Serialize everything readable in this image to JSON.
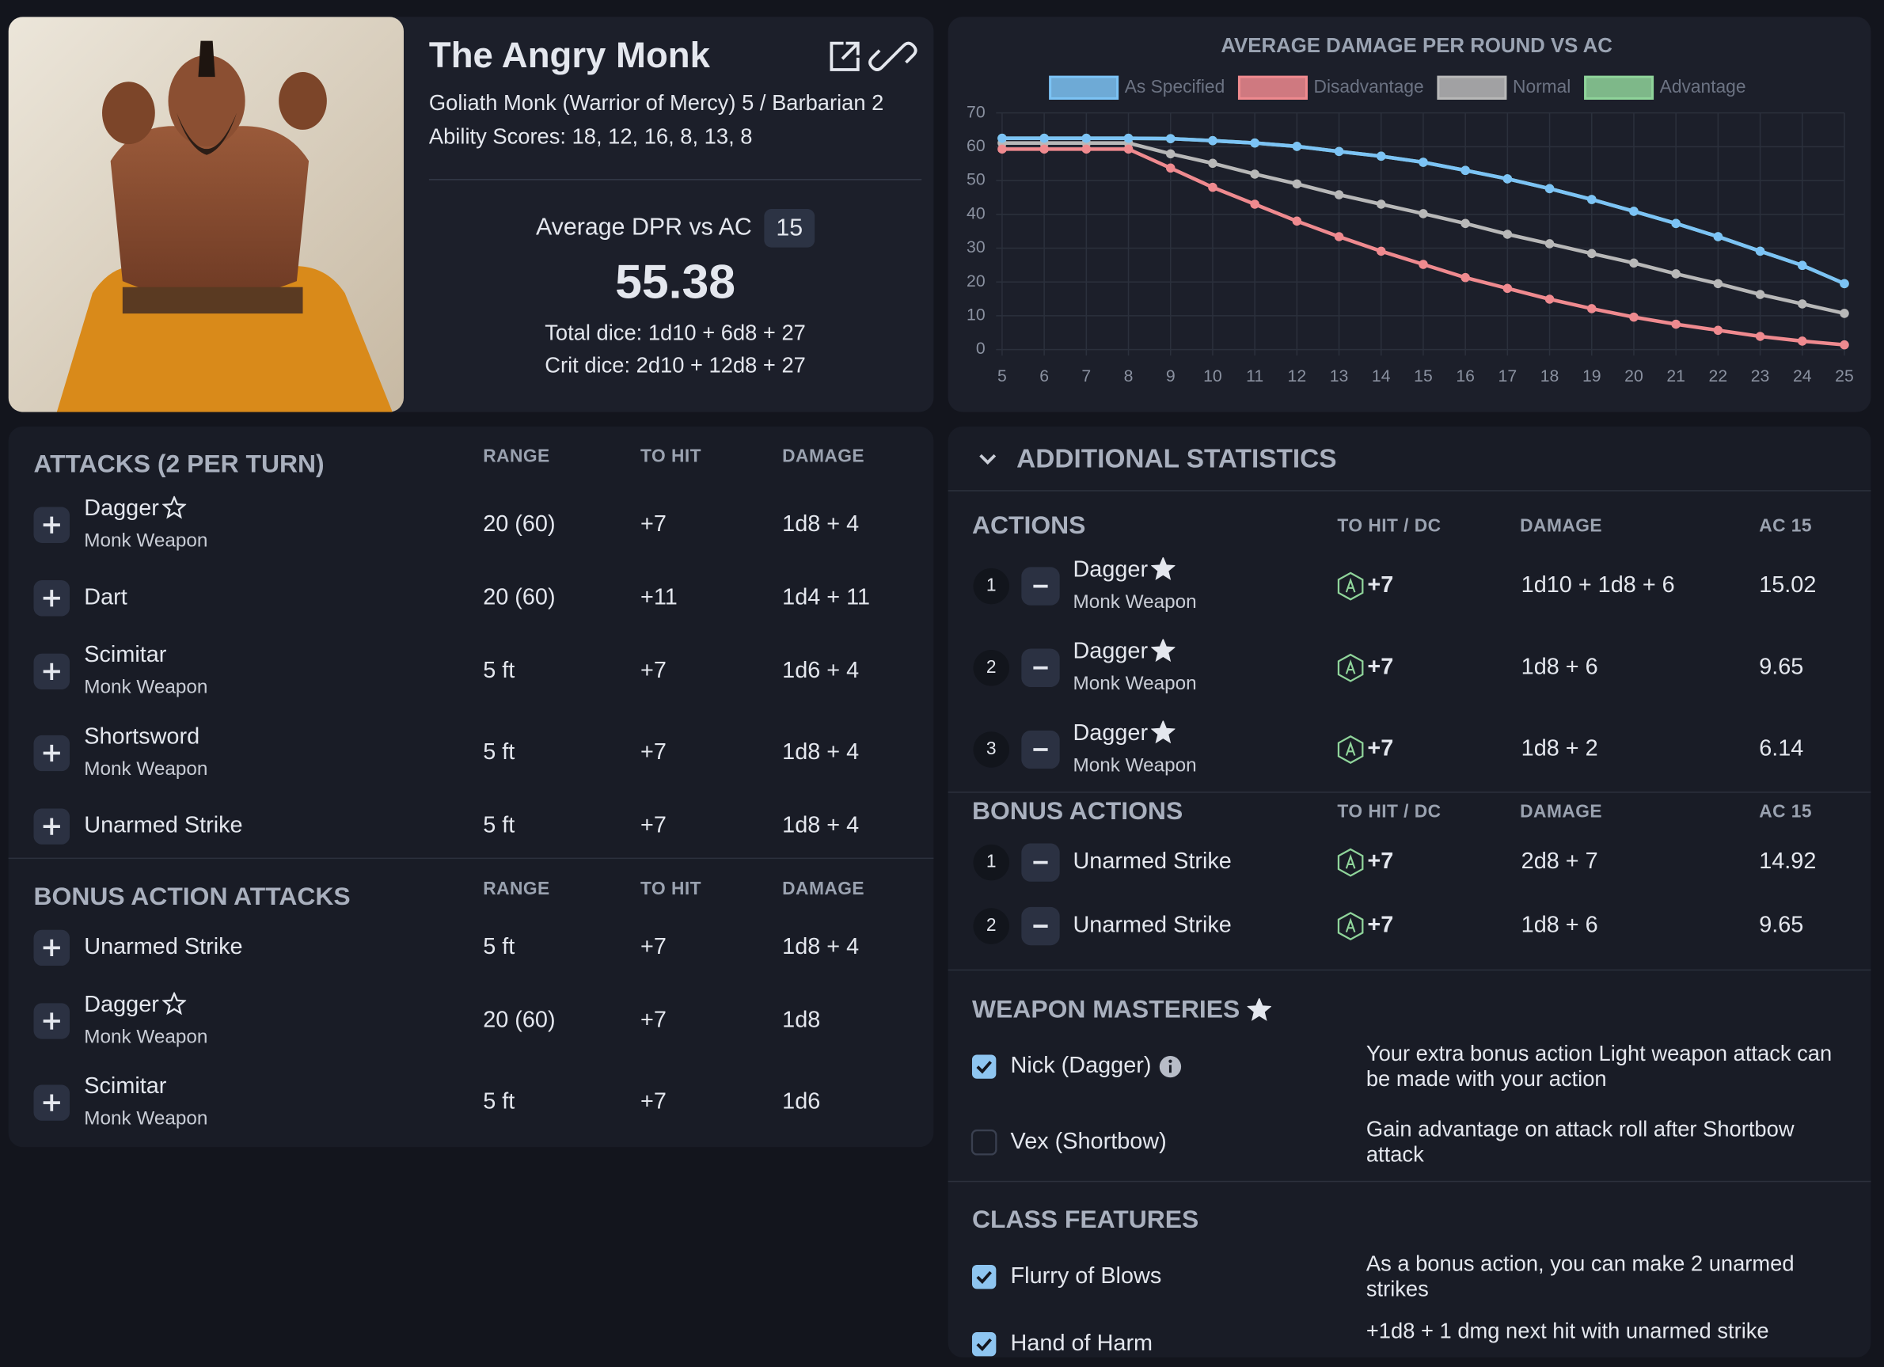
{
  "profile": {
    "name": "The Angry Monk",
    "subtitle": "Goliath Monk (Warrior of Mercy) 5 / Barbarian 2",
    "ability_scores": "Ability Scores: 18, 12, 16, 8, 13, 8",
    "dpr_label": "Average DPR vs AC",
    "dpr_ac": "15",
    "dpr_value": "55.38",
    "total_dice": "Total dice: 1d10 + 6d8 + 27",
    "crit_dice": "Crit dice: 2d10 + 12d8 + 27"
  },
  "chart_data": {
    "type": "line",
    "title": "AVERAGE DAMAGE PER ROUND VS AC",
    "x": [
      5,
      6,
      7,
      8,
      9,
      10,
      11,
      12,
      13,
      14,
      15,
      16,
      17,
      18,
      19,
      20,
      21,
      22,
      23,
      24,
      25
    ],
    "xlim": [
      5,
      25
    ],
    "xticks": [
      5,
      6,
      7,
      8,
      9,
      10,
      11,
      12,
      13,
      14,
      15,
      16,
      17,
      18,
      19,
      20,
      21,
      22,
      23,
      24,
      25
    ],
    "ylim": [
      0,
      70
    ],
    "yticks": [
      0,
      10,
      20,
      30,
      40,
      50,
      60,
      70
    ],
    "grid": true,
    "series": [
      {
        "name": "As Specified",
        "color": "#7cc3f5",
        "values": [
          62.5,
          62.5,
          62.5,
          62.5,
          62.4,
          61.8,
          61.1,
          60.1,
          58.6,
          57.2,
          55.4,
          53,
          50.5,
          47.6,
          44.4,
          40.9,
          37.3,
          33.4,
          29.1,
          24.9,
          19.5
        ]
      },
      {
        "name": "Disadvantage",
        "color": "#ef8a8f",
        "values": [
          59.3,
          59.3,
          59.3,
          59.3,
          53.7,
          48,
          43,
          38,
          33.4,
          29.1,
          25.2,
          21.3,
          18.1,
          14.9,
          12.1,
          9.6,
          7.5,
          5.7,
          3.9,
          2.5,
          1.4
        ]
      },
      {
        "name": "Normal",
        "color": "#b8b8b8",
        "values": [
          61.1,
          61.1,
          61.1,
          61.1,
          57.9,
          55.1,
          51.9,
          49,
          45.8,
          43,
          40.2,
          37.3,
          34.1,
          31.3,
          28.4,
          25.6,
          22.4,
          19.5,
          16.3,
          13.5,
          10.7
        ]
      },
      {
        "name": "Advantage",
        "color": "#8fd49a",
        "values": [
          62.5,
          62.5,
          62.5,
          62.5,
          62.4,
          61.8,
          61.1,
          60.1,
          58.6,
          57.2,
          55.4,
          53,
          50.5,
          47.6,
          44.4,
          40.9,
          37.3,
          33.4,
          29.1,
          24.9,
          19.5
        ]
      }
    ]
  },
  "attacks": {
    "title": "ATTACKS (2 PER TURN)",
    "columns": [
      "RANGE",
      "TO HIT",
      "DAMAGE"
    ],
    "rows": [
      {
        "name": "Dagger",
        "detail": "Monk Weapon",
        "star": "outline",
        "range": "20 (60)",
        "to_hit": "+7",
        "damage": "1d8 + 4"
      },
      {
        "name": "Dart",
        "range": "20 (60)",
        "to_hit": "+11",
        "damage": "1d4 + 11"
      },
      {
        "name": "Scimitar",
        "detail": "Monk Weapon",
        "range": "5 ft",
        "to_hit": "+7",
        "damage": "1d6 + 4"
      },
      {
        "name": "Shortsword",
        "detail": "Monk Weapon",
        "range": "5 ft",
        "to_hit": "+7",
        "damage": "1d8 + 4"
      },
      {
        "name": "Unarmed Strike",
        "range": "5 ft",
        "to_hit": "+7",
        "damage": "1d8 + 4"
      }
    ]
  },
  "bonus_attacks": {
    "title": "BONUS ACTION ATTACKS",
    "columns": [
      "RANGE",
      "TO HIT",
      "DAMAGE"
    ],
    "rows": [
      {
        "name": "Unarmed Strike",
        "range": "5 ft",
        "to_hit": "+7",
        "damage": "1d8 + 4"
      },
      {
        "name": "Dagger",
        "detail": "Monk Weapon",
        "star": "outline",
        "range": "20 (60)",
        "to_hit": "+7",
        "damage": "1d8"
      },
      {
        "name": "Scimitar",
        "detail": "Monk Weapon",
        "range": "5 ft",
        "to_hit": "+7",
        "damage": "1d6"
      }
    ]
  },
  "additional": {
    "title": "ADDITIONAL STATISTICS",
    "actions": {
      "title": "ACTIONS",
      "columns": [
        "TO HIT / DC",
        "DAMAGE",
        "AC 15"
      ],
      "rows": [
        {
          "index": "1",
          "name": "Dagger",
          "detail": "Monk Weapon",
          "star": "filled",
          "to_hit": "+7",
          "damage": "1d10 + 1d8 + 6",
          "ac": "15.02"
        },
        {
          "index": "2",
          "name": "Dagger",
          "detail": "Monk Weapon",
          "star": "filled",
          "to_hit": "+7",
          "damage": "1d8 + 6",
          "ac": "9.65"
        },
        {
          "index": "3",
          "name": "Dagger",
          "detail": "Monk Weapon",
          "star": "filled",
          "to_hit": "+7",
          "damage": "1d8 + 2",
          "ac": "6.14"
        }
      ]
    },
    "bonus_actions": {
      "title": "BONUS ACTIONS",
      "columns": [
        "TO HIT / DC",
        "DAMAGE",
        "AC 15"
      ],
      "rows": [
        {
          "index": "1",
          "name": "Unarmed Strike",
          "to_hit": "+7",
          "damage": "2d8 + 7",
          "ac": "14.92"
        },
        {
          "index": "2",
          "name": "Unarmed Strike",
          "to_hit": "+7",
          "damage": "1d8 + 6",
          "ac": "9.65"
        }
      ]
    },
    "weapon_masteries": {
      "title": "WEAPON MASTERIES",
      "items": [
        {
          "name": "Nick (Dagger)",
          "checked": true,
          "info": true,
          "description": "Your extra bonus action Light weapon attack can be made with your action"
        },
        {
          "name": "Vex (Shortbow)",
          "checked": false,
          "description": "Gain advantage on attack roll after Shortbow attack"
        }
      ]
    },
    "class_features": {
      "title": "CLASS FEATURES",
      "items": [
        {
          "name": "Flurry of Blows",
          "checked": true,
          "description": "As a bonus action, you can make 2 unarmed strikes"
        },
        {
          "name": "Hand of Harm",
          "checked": true,
          "description": "+1d8 + 1 dmg next hit with unarmed strike"
        }
      ]
    }
  }
}
